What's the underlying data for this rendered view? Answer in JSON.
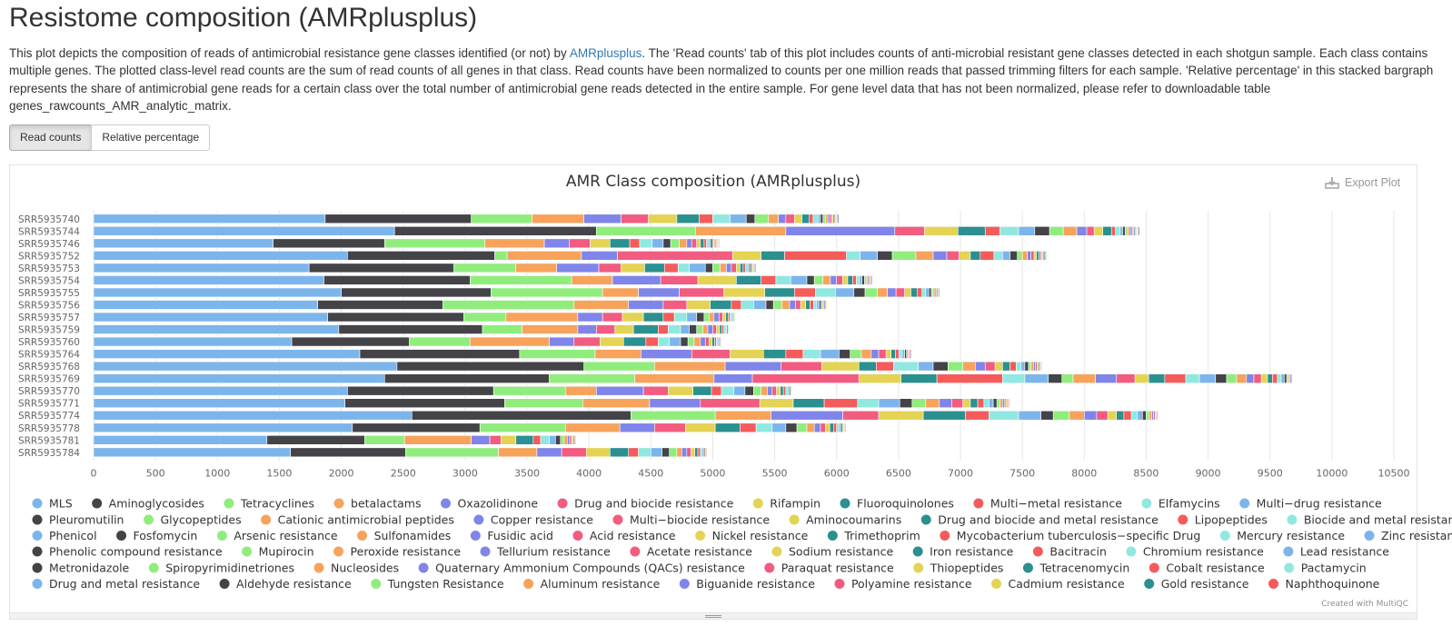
{
  "title": "Resistome composition (AMRplusplus)",
  "description": {
    "before_link": "This plot depicts the composition of reads of antimicrobial resistance gene classes identified (or not) by ",
    "link": "AMRplusplus",
    "after_link": ". The 'Read counts' tab of this plot includes counts of anti-microbial resistant gene classes detected in each shotgun sample. Each class contains multiple genes. The plotted class-level read counts are the sum of read counts of all genes in that class. Read counts have been normalized to counts per one million reads that passed trimming filters for each sample. 'Relative percentage' in this stacked bargraph represents the share of antimicrobial gene reads for a certain class over the total number of antimicrobial gene reads detected in the entire sample. For gene level data that has not been normalized, please refer to downloadable table genes_rawcounts_AMR_analytic_matrix."
  },
  "tabs": [
    {
      "label": "Read counts",
      "active": true
    },
    {
      "label": "Relative percentage",
      "active": false
    }
  ],
  "export_label": "Export Plot",
  "credit": "Created with MultiQC",
  "chart_data": {
    "type": "bar",
    "orientation": "horizontal",
    "stacked": true,
    "title": "AMR Class composition (AMRplusplus)",
    "xlim": [
      0,
      10500
    ],
    "xticks": [
      0,
      500,
      1000,
      1500,
      2000,
      2500,
      3000,
      3500,
      4000,
      4500,
      5000,
      5500,
      6000,
      6500,
      7000,
      7500,
      8000,
      8500,
      9000,
      9500,
      10000,
      10500
    ],
    "grid": true,
    "legend_position": "bottom",
    "palette": [
      "#7cb5ec",
      "#434348",
      "#90ed7d",
      "#f7a35c",
      "#8085e9",
      "#f15c80",
      "#e4d354",
      "#2b908f",
      "#f45b5b",
      "#91e8e1"
    ],
    "classes": [
      "MLS",
      "Aminoglycosides",
      "Tetracyclines",
      "betalactams",
      "Oxazolidinone",
      "Drug and biocide resistance",
      "Rifampin",
      "Fluoroquinolones",
      "Multi−metal resistance",
      "Elfamycins",
      "Multi−drug resistance",
      "Pleuromutilin",
      "Glycopeptides",
      "Cationic antimicrobial peptides",
      "Copper resistance",
      "Multi−biocide resistance",
      "Aminocoumarins",
      "Drug and biocide and metal resistance",
      "Lipopeptides",
      "Biocide and metal resistance",
      "Phenicol",
      "Fosfomycin",
      "Arsenic resistance",
      "Sulfonamides",
      "Fusidic acid",
      "Acid resistance",
      "Nickel resistance",
      "Trimethoprim",
      "Mycobacterium tuberculosis−specific Drug",
      "Mercury resistance",
      "Zinc resistance",
      "Phenolic compound resistance",
      "Mupirocin",
      "Peroxide resistance",
      "Tellurium resistance",
      "Acetate resistance",
      "Sodium resistance",
      "Iron resistance",
      "Bacitracin",
      "Chromium resistance",
      "Lead resistance",
      "Metronidazole",
      "Spiropyrimidinetriones",
      "Nucleosides",
      "Quaternary Ammonium Compounds (QACs) resistance",
      "Paraquat resistance",
      "Thiopeptides",
      "Tetracenomycin",
      "Cobalt resistance",
      "Pactamycin",
      "Drug and metal resistance",
      "Aldehyde resistance",
      "Tungsten Resistance",
      "Aluminum resistance",
      "Biguanide resistance",
      "Polyamine resistance",
      "Cadmium resistance",
      "Gold resistance",
      "Naphthoquinone"
    ],
    "legend_rows": [
      11,
      9,
      11,
      10,
      9,
      9
    ],
    "samples": [
      {
        "name": "SRR5935740",
        "values": [
          1870,
          1180,
          490,
          420,
          300,
          220,
          230,
          180,
          110,
          140,
          130,
          70,
          110,
          80,
          60,
          70,
          60,
          60,
          30,
          40,
          20,
          20,
          20,
          20,
          15,
          15,
          12,
          10,
          10,
          8,
          8,
          8
        ]
      },
      {
        "name": "SRR5935744",
        "values": [
          2430,
          1630,
          800,
          730,
          880,
          240,
          270,
          220,
          120,
          150,
          130,
          120,
          110,
          110,
          80,
          60,
          70,
          70,
          30,
          40,
          20,
          20,
          20,
          15,
          15,
          12,
          10,
          10,
          8,
          8,
          8,
          8
        ]
      },
      {
        "name": "SRR5935746",
        "values": [
          1450,
          900,
          810,
          480,
          200,
          170,
          160,
          160,
          80,
          100,
          90,
          60,
          70,
          60,
          40,
          40,
          30,
          30,
          20,
          20,
          15,
          15,
          10,
          10,
          10,
          8,
          8,
          6
        ]
      },
      {
        "name": "SRR5935752",
        "values": [
          2050,
          1190,
          100,
          600,
          290,
          930,
          230,
          190,
          500,
          110,
          140,
          120,
          190,
          140,
          110,
          100,
          90,
          80,
          110,
          70,
          60,
          60,
          40,
          40,
          30,
          25,
          20,
          20,
          15,
          15,
          12,
          10,
          8
        ]
      },
      {
        "name": "SRR5935753",
        "values": [
          1740,
          1170,
          500,
          330,
          340,
          180,
          190,
          160,
          110,
          90,
          130,
          60,
          60,
          50,
          40,
          40,
          30,
          25,
          20,
          20,
          15,
          12,
          10,
          10,
          8,
          8
        ]
      },
      {
        "name": "SRR5935754",
        "values": [
          1860,
          1180,
          820,
          330,
          390,
          300,
          310,
          200,
          120,
          120,
          130,
          60,
          70,
          60,
          50,
          50,
          40,
          40,
          30,
          25,
          20,
          20,
          15,
          12,
          10,
          10,
          8,
          8
        ]
      },
      {
        "name": "SRR5935755",
        "values": [
          2000,
          1210,
          900,
          290,
          330,
          360,
          330,
          240,
          170,
          160,
          150,
          90,
          100,
          80,
          70,
          70,
          50,
          50,
          40,
          30,
          25,
          20,
          15,
          15,
          12,
          10,
          8,
          8
        ]
      },
      {
        "name": "SRR5935756",
        "values": [
          1810,
          1010,
          1060,
          440,
          280,
          190,
          190,
          170,
          80,
          100,
          100,
          60,
          70,
          60,
          50,
          40,
          40,
          35,
          30,
          25,
          20,
          15,
          12,
          12,
          10,
          8,
          8
        ]
      },
      {
        "name": "SRR5935757",
        "values": [
          1890,
          1100,
          340,
          580,
          200,
          160,
          170,
          160,
          90,
          100,
          80,
          60,
          40,
          40,
          40,
          30,
          25,
          20,
          15,
          12,
          10,
          8,
          8
        ]
      },
      {
        "name": "SRR5935759",
        "values": [
          1980,
          1160,
          320,
          450,
          150,
          150,
          150,
          200,
          80,
          100,
          70,
          60,
          50,
          40,
          40,
          30,
          25,
          20,
          15,
          12,
          10,
          8,
          8
        ]
      },
      {
        "name": "SRR5935760",
        "values": [
          1600,
          950,
          490,
          640,
          200,
          210,
          190,
          180,
          100,
          90,
          90,
          60,
          50,
          50,
          40,
          30,
          25,
          20,
          15,
          12,
          10,
          8
        ]
      },
      {
        "name": "SRR5935764",
        "values": [
          2150,
          1290,
          610,
          370,
          410,
          310,
          270,
          180,
          140,
          140,
          150,
          90,
          90,
          80,
          60,
          60,
          40,
          35,
          30,
          25,
          20,
          15,
          12,
          10,
          8,
          8
        ]
      },
      {
        "name": "SRR5935768",
        "values": [
          2450,
          1510,
          570,
          570,
          450,
          330,
          300,
          140,
          140,
          200,
          120,
          120,
          120,
          100,
          80,
          80,
          60,
          60,
          50,
          40,
          30,
          30,
          20,
          20,
          15,
          15,
          12,
          10,
          8,
          8
        ]
      },
      {
        "name": "SRR5935769",
        "values": [
          2350,
          1330,
          690,
          640,
          310,
          860,
          340,
          290,
          530,
          180,
          190,
          110,
          90,
          180,
          170,
          150,
          110,
          130,
          170,
          110,
          130,
          90,
          80,
          80,
          60,
          60,
          50,
          40,
          40,
          30,
          25,
          20,
          15,
          12,
          10,
          8
        ]
      },
      {
        "name": "SRR5935770",
        "values": [
          2050,
          1180,
          580,
          250,
          380,
          200,
          200,
          150,
          80,
          100,
          90,
          70,
          60,
          50,
          40,
          35,
          30,
          25,
          20,
          15,
          12,
          10,
          8
        ]
      },
      {
        "name": "SRR5935771",
        "values": [
          2030,
          1290,
          630,
          540,
          410,
          480,
          270,
          250,
          270,
          170,
          170,
          100,
          110,
          110,
          100,
          90,
          60,
          60,
          50,
          40,
          35,
          30,
          25,
          20,
          15,
          12,
          10,
          8,
          8
        ]
      },
      {
        "name": "SRR5935774",
        "values": [
          2570,
          1770,
          680,
          450,
          580,
          290,
          360,
          340,
          190,
          240,
          180,
          100,
          130,
          120,
          100,
          90,
          70,
          60,
          60,
          50,
          40,
          30,
          25,
          20,
          15,
          12,
          10,
          8
        ]
      },
      {
        "name": "SRR5935778",
        "values": [
          2090,
          1030,
          690,
          440,
          280,
          250,
          240,
          200,
          130,
          130,
          110,
          90,
          80,
          60,
          50,
          40,
          35,
          30,
          25,
          20,
          15,
          12,
          10,
          8,
          8
        ]
      },
      {
        "name": "SRR5935781",
        "values": [
          1400,
          790,
          320,
          540,
          150,
          90,
          120,
          140,
          60,
          70,
          50,
          40,
          30,
          25,
          20,
          15,
          12,
          10,
          8,
          8
        ]
      },
      {
        "name": "SRR5935784",
        "values": [
          1590,
          930,
          750,
          310,
          200,
          200,
          190,
          150,
          80,
          100,
          90,
          60,
          60,
          40,
          40,
          35,
          30,
          25,
          20,
          15,
          12,
          10,
          8,
          8
        ]
      }
    ]
  }
}
